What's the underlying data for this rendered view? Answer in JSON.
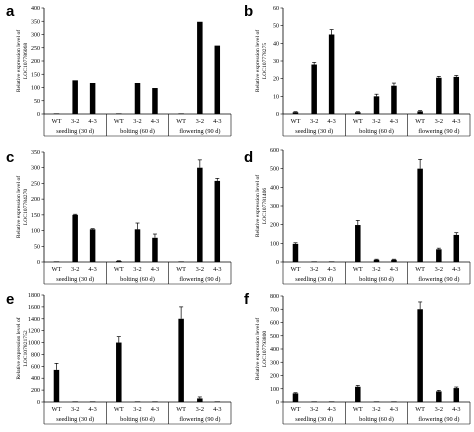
{
  "chart_data": [
    {
      "panel": "a",
      "type": "bar",
      "ylabel": "Relative expression level of\nLOC107786068",
      "ylim": [
        0,
        400
      ],
      "yticks": [
        0,
        50,
        100,
        150,
        200,
        250,
        300,
        350,
        400
      ],
      "stages": [
        "seedling (30 d)",
        "bolting (60 d)",
        "flowering (90 d)"
      ],
      "genotypes": [
        "WT",
        "3-2",
        "4-3"
      ],
      "values": [
        [
          1,
          127,
          117
        ],
        [
          1,
          117,
          98
        ],
        [
          1,
          348,
          258
        ]
      ],
      "errors": [
        [
          0,
          0,
          0
        ],
        [
          0,
          0,
          0
        ],
        [
          0,
          0,
          0
        ]
      ]
    },
    {
      "panel": "b",
      "type": "bar",
      "ylabel": "Relative expression level of\nLOC107778275",
      "ylim": [
        0,
        60
      ],
      "yticks": [
        0,
        10,
        20,
        30,
        40,
        50,
        60
      ],
      "stages": [
        "seedling (30 d)",
        "bolting (60 d)",
        "flowering (90 d)"
      ],
      "genotypes": [
        "WT",
        "3-2",
        "4-3"
      ],
      "values": [
        [
          1,
          28,
          45
        ],
        [
          1,
          10,
          16
        ],
        [
          1.5,
          20.5,
          21
        ]
      ],
      "errors": [
        [
          0.3,
          1.2,
          2.8
        ],
        [
          0.3,
          1.2,
          1.5
        ],
        [
          0.4,
          0.8,
          0.8
        ]
      ]
    },
    {
      "panel": "c",
      "type": "bar",
      "ylabel": "Relative expression level of\nLOC107784270",
      "ylim": [
        0,
        350
      ],
      "yticks": [
        0,
        50,
        100,
        150,
        200,
        250,
        300,
        350
      ],
      "stages": [
        "seedling (30 d)",
        "bolting (60 d)",
        "flowering (90 d)"
      ],
      "genotypes": [
        "WT",
        "3-2",
        "4-3"
      ],
      "values": [
        [
          1,
          150,
          104
        ],
        [
          3,
          104,
          77
        ],
        [
          1,
          300,
          258
        ]
      ],
      "errors": [
        [
          0,
          2,
          2
        ],
        [
          1,
          20,
          12
        ],
        [
          0,
          25,
          8
        ]
      ]
    },
    {
      "panel": "d",
      "type": "bar",
      "ylabel": "Relative expression level of\nLOC107781406",
      "ylim": [
        0,
        600
      ],
      "yticks": [
        0,
        100,
        200,
        300,
        400,
        500,
        600
      ],
      "stages": [
        "seedling (30 d)",
        "bolting (60 d)",
        "flowering (90 d)"
      ],
      "genotypes": [
        "WT",
        "3-2",
        "4-3"
      ],
      "values": [
        [
          97,
          0,
          0
        ],
        [
          198,
          12,
          12
        ],
        [
          500,
          68,
          145
        ]
      ],
      "errors": [
        [
          6,
          0,
          0
        ],
        [
          25,
          3,
          3
        ],
        [
          50,
          6,
          12
        ]
      ]
    },
    {
      "panel": "e",
      "type": "bar",
      "ylabel": "Relative expression level of\nLOC107821752",
      "ylim": [
        0,
        1800
      ],
      "yticks": [
        0,
        200,
        400,
        600,
        800,
        1000,
        1200,
        1400,
        1600,
        1800
      ],
      "stages": [
        "seedling (30 d)",
        "bolting (60 d)",
        "flowering (90 d)"
      ],
      "genotypes": [
        "WT",
        "3-2",
        "4-3"
      ],
      "values": [
        [
          540,
          0,
          0
        ],
        [
          1000,
          0,
          0
        ],
        [
          1400,
          60,
          0
        ]
      ],
      "errors": [
        [
          110,
          0,
          0
        ],
        [
          100,
          0,
          0
        ],
        [
          200,
          25,
          0
        ]
      ]
    },
    {
      "panel": "f",
      "type": "bar",
      "ylabel": "Relative expression level of\nLOC107793800",
      "ylim": [
        0,
        800
      ],
      "yticks": [
        0,
        100,
        200,
        300,
        400,
        500,
        600,
        700,
        800
      ],
      "stages": [
        "seedling (30 d)",
        "bolting (60 d)",
        "flowering (90 d)"
      ],
      "genotypes": [
        "WT",
        "3-2",
        "4-3"
      ],
      "values": [
        [
          65,
          0,
          0
        ],
        [
          115,
          0,
          0
        ],
        [
          700,
          80,
          105
        ]
      ],
      "errors": [
        [
          5,
          0,
          0
        ],
        [
          10,
          0,
          0
        ],
        [
          55,
          8,
          8
        ]
      ]
    }
  ]
}
